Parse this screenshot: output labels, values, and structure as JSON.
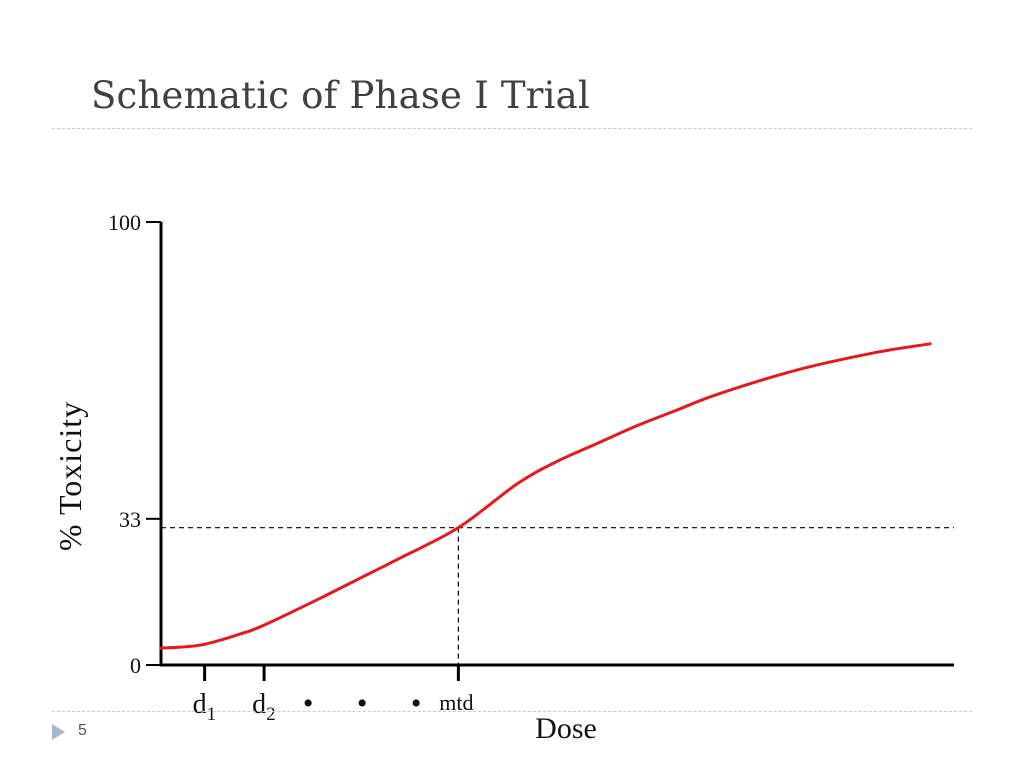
{
  "slide": {
    "title": "Schematic of Phase I Trial",
    "page_number": "5"
  },
  "chart_data": {
    "type": "line",
    "title": "",
    "xlabel": "Dose",
    "ylabel": "% Toxicity",
    "ylim": [
      0,
      100
    ],
    "xlim": [
      0,
      100
    ],
    "y_ticks": [
      {
        "value": 0,
        "label": "0"
      },
      {
        "value": 33,
        "label": "33"
      },
      {
        "value": 100,
        "label": "100"
      }
    ],
    "x_ticks": [
      {
        "value": 5.5,
        "label": "d",
        "sub": "1"
      },
      {
        "value": 13,
        "label": "d",
        "sub": "2"
      },
      {
        "value": 37.5,
        "label": "mtd"
      }
    ],
    "ellipsis": "• • •",
    "reference": {
      "x": 37.5,
      "y": 31,
      "style": "dashed"
    },
    "series": [
      {
        "color": "#e41a1c",
        "points": [
          [
            0,
            3.8
          ],
          [
            5,
            4.5
          ],
          [
            10,
            7
          ],
          [
            13,
            9
          ],
          [
            20,
            15
          ],
          [
            25,
            19.5
          ],
          [
            30,
            24
          ],
          [
            37.5,
            31
          ],
          [
            45,
            41
          ],
          [
            50,
            46
          ],
          [
            55,
            50
          ],
          [
            60,
            54
          ],
          [
            65,
            57.5
          ],
          [
            70,
            61
          ],
          [
            80,
            66.5
          ],
          [
            90,
            70.5
          ],
          [
            97,
            72.5
          ]
        ]
      }
    ],
    "grid": false
  }
}
